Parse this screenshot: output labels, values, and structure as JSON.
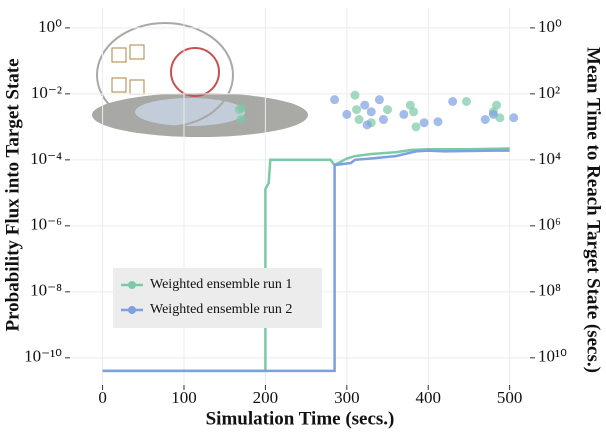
{
  "chart_data": {
    "type": "line",
    "x_label": "Simulation Time (secs.)",
    "y_label": "Probability Flux into Target State",
    "y2_label": "Mean Time to Reach Target State (secs.)",
    "xlim": [
      -40,
      525
    ],
    "xticks": [
      0,
      100,
      200,
      300,
      400,
      500
    ],
    "ylim": [
      1.5e-11,
      4
    ],
    "yscale": "log",
    "yticks": [
      {
        "value": 1,
        "label": "10⁰"
      },
      {
        "value": 0.01,
        "label": "10⁻²"
      },
      {
        "value": 0.0001,
        "label": "10⁻⁴"
      },
      {
        "value": 1e-06,
        "label": "10⁻⁶"
      },
      {
        "value": 1e-08,
        "label": "10⁻⁸"
      },
      {
        "value": 1e-10,
        "label": "10⁻¹⁰"
      }
    ],
    "y2lim": [
      66666666667,
      0.25
    ],
    "y2scale": "log",
    "y2ticks": [
      {
        "value": 1,
        "label": "10⁰"
      },
      {
        "value": 100,
        "label": "10²"
      },
      {
        "value": 10000,
        "label": "10⁴"
      },
      {
        "value": 1000000,
        "label": "10⁶"
      },
      {
        "value": 100000000,
        "label": "10⁸"
      },
      {
        "value": 10000000000,
        "label": "10¹⁰"
      }
    ],
    "grid": true,
    "legend": "bottom-left",
    "series": [
      {
        "name": "Weighted ensemble run 1",
        "color": "#7cc9a6",
        "x": [
          0,
          200,
          200,
          204,
          206,
          280,
          285,
          300,
          310,
          330,
          360,
          380,
          400,
          450,
          500
        ],
        "values": [
          4e-11,
          4e-11,
          1.3e-05,
          2e-05,
          0.0001,
          0.0001,
          7e-05,
          0.00011,
          0.00013,
          0.00015,
          0.00017,
          0.0002,
          0.00021,
          0.00021,
          0.00022
        ]
      },
      {
        "name": "Weighted ensemble run 2",
        "color": "#7ca0e0",
        "x": [
          0,
          285,
          285,
          305,
          310,
          330,
          360,
          385,
          400,
          420,
          480,
          500
        ],
        "values": [
          4e-11,
          4e-11,
          7e-05,
          8e-05,
          0.0001,
          0.00011,
          0.00013,
          0.00018,
          0.00019,
          0.00018,
          0.00019,
          0.00019
        ]
      },
      {
        "type": "scatter",
        "axis": "y2",
        "color": "#7cc9a6",
        "x": [
          168,
          170,
          171,
          310,
          312,
          315,
          330,
          350,
          378,
          382,
          385,
          447,
          480,
          484,
          488
        ],
        "values": [
          300,
          600,
          270,
          110,
          300,
          600,
          750,
          300,
          220,
          350,
          1000,
          170,
          350,
          220,
          530
        ]
      },
      {
        "type": "scatter",
        "axis": "y2",
        "color": "#7ca0e0",
        "x": [
          285,
          300,
          322,
          325,
          330,
          340,
          345,
          370,
          395,
          412,
          430,
          470,
          480,
          505
        ],
        "values": [
          150,
          420,
          220,
          870,
          350,
          150,
          600,
          420,
          750,
          700,
          170,
          600,
          420,
          530
        ]
      }
    ]
  }
}
